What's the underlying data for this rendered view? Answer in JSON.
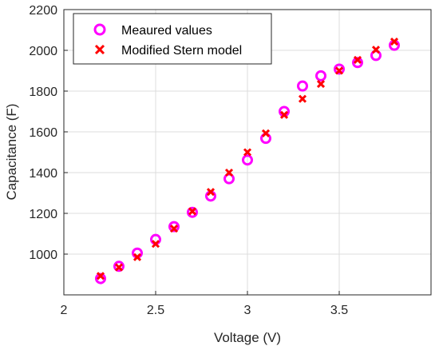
{
  "chart_data": {
    "type": "scatter",
    "title": "",
    "xlabel": "Voltage (V)",
    "ylabel": "Capacitance (F)",
    "xlim": [
      2,
      4
    ],
    "ylim": [
      800,
      2200
    ],
    "xticks": [
      "2",
      "2.5",
      "3",
      "3.5"
    ],
    "xtick_values": [
      2,
      2.5,
      3,
      3.5
    ],
    "yticks": [
      "1000",
      "1200",
      "1400",
      "1600",
      "1800",
      "2000",
      "2200"
    ],
    "ytick_values": [
      1000,
      1200,
      1400,
      1600,
      1800,
      2000,
      2200
    ],
    "grid": true,
    "legend_position": "top-left",
    "series": [
      {
        "name": "Meaured values",
        "marker": "circle",
        "color": "#ff00ff",
        "x": [
          2.2,
          2.3,
          2.4,
          2.5,
          2.6,
          2.7,
          2.8,
          2.9,
          3.0,
          3.1,
          3.2,
          3.3,
          3.4,
          3.5,
          3.6,
          3.7,
          3.8
        ],
        "y": [
          880,
          940,
          1005,
          1072,
          1135,
          1205,
          1285,
          1370,
          1462,
          1568,
          1700,
          1825,
          1875,
          1908,
          1940,
          1975,
          2025
        ]
      },
      {
        "name": "Modified Stern model",
        "marker": "x",
        "color": "#ff0000",
        "x": [
          2.2,
          2.3,
          2.4,
          2.5,
          2.6,
          2.7,
          2.8,
          2.9,
          3.0,
          3.1,
          3.2,
          3.3,
          3.4,
          3.5,
          3.6,
          3.7,
          3.8
        ],
        "y": [
          893,
          935,
          985,
          1050,
          1125,
          1210,
          1305,
          1400,
          1500,
          1593,
          1683,
          1762,
          1835,
          1900,
          1953,
          2003,
          2043
        ]
      }
    ]
  }
}
